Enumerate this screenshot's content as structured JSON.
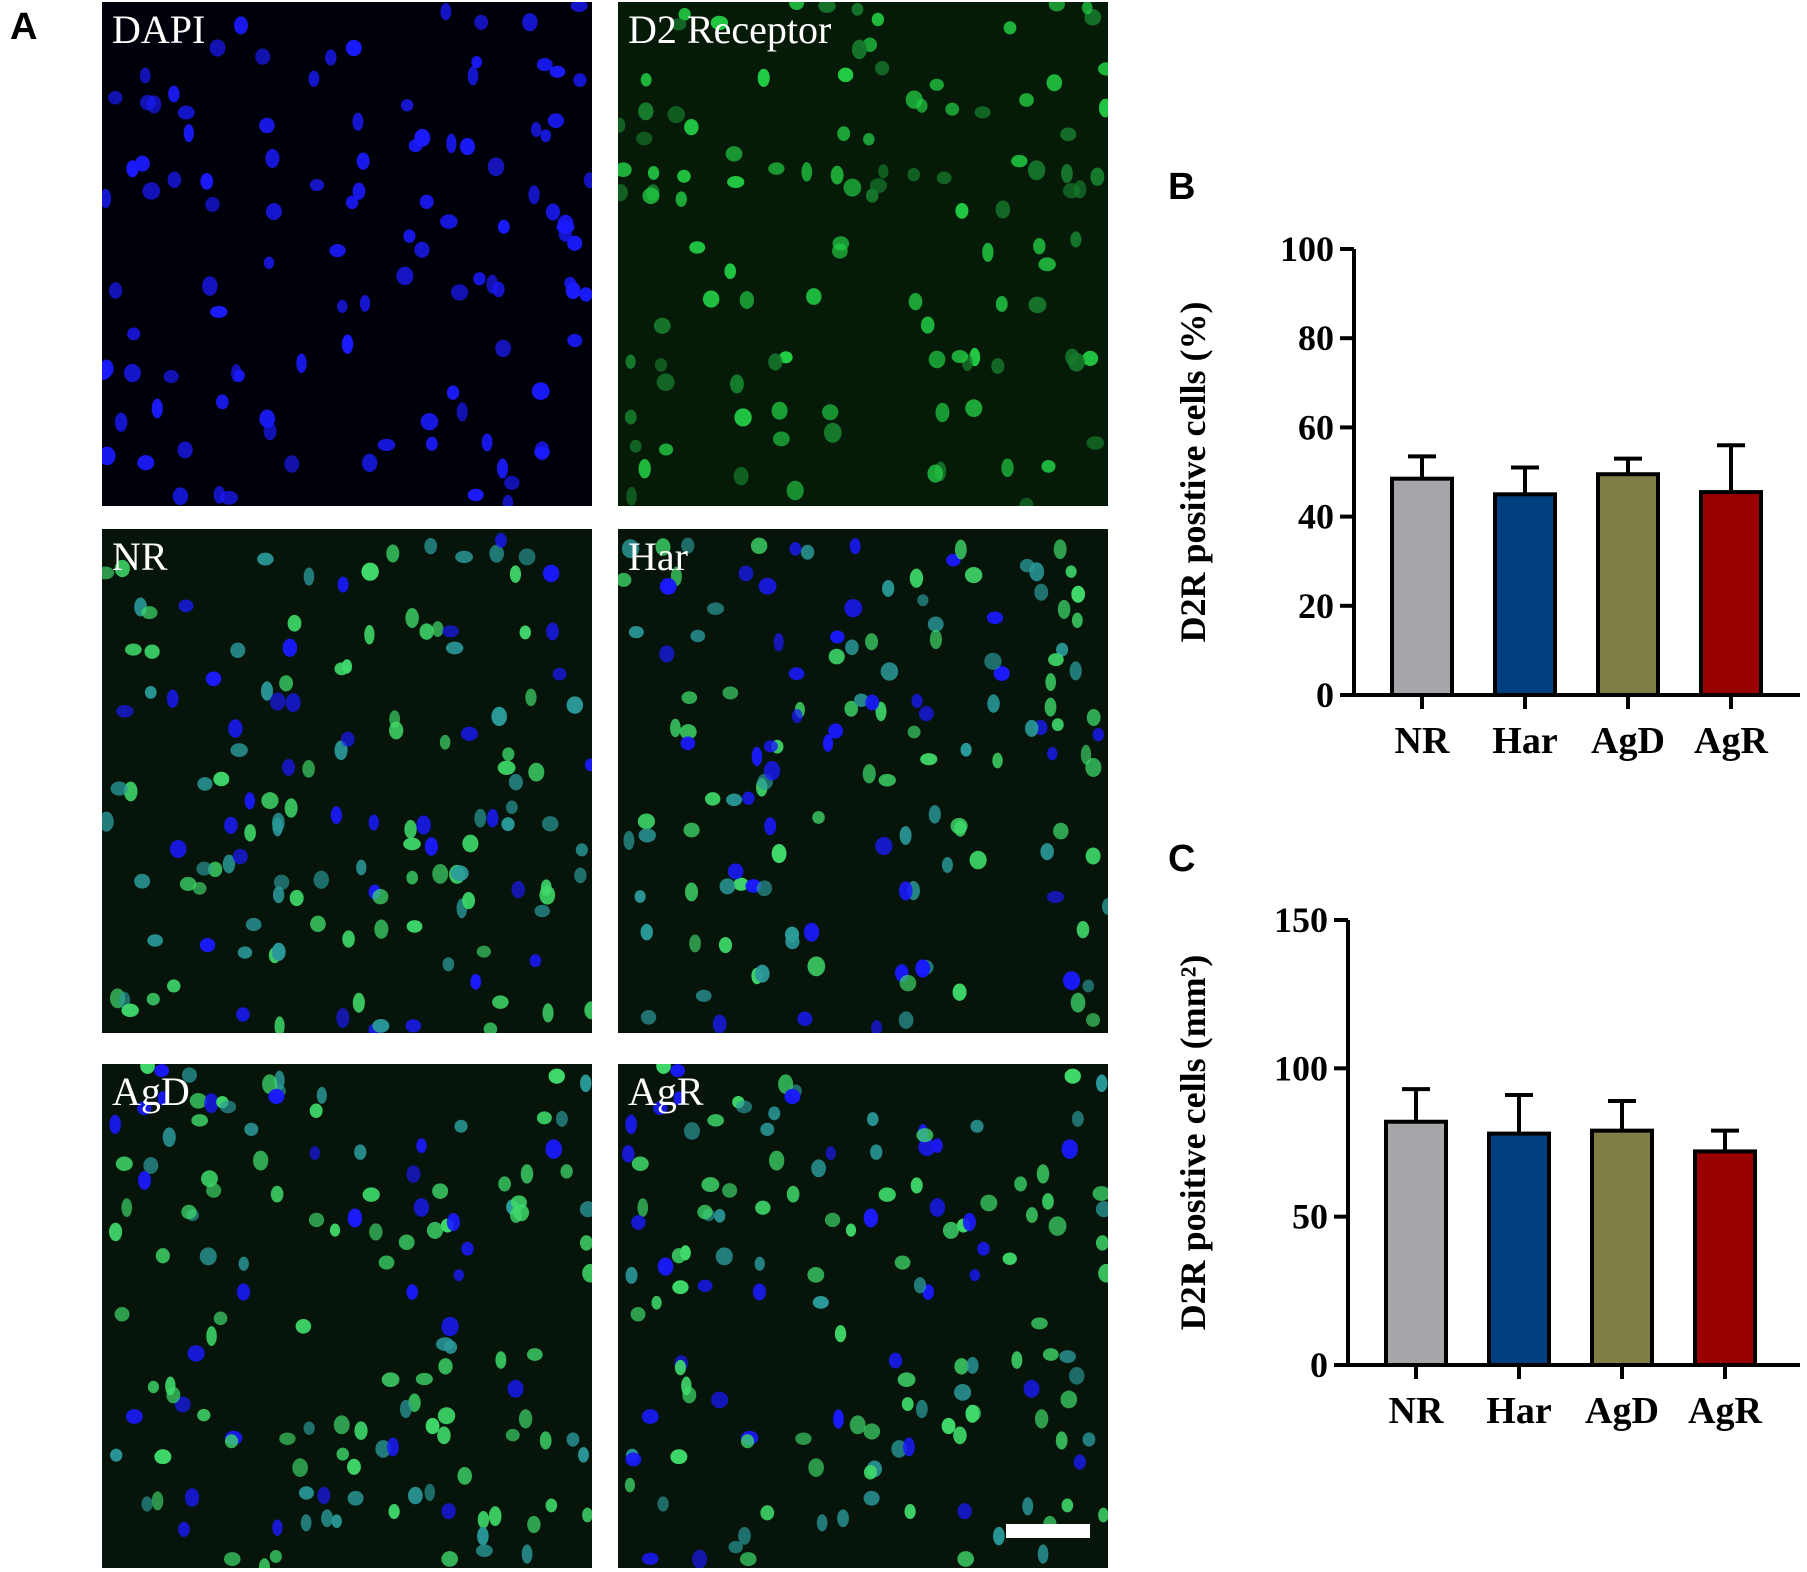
{
  "panels": {
    "a_letter": "A",
    "b_letter": "B",
    "c_letter": "C"
  },
  "micrographs": [
    {
      "label": "DAPI",
      "channels": "blue"
    },
    {
      "label": "D2 Receptor",
      "channels": "green"
    },
    {
      "label": "NR",
      "channels": "merge"
    },
    {
      "label": "Har",
      "channels": "merge"
    },
    {
      "label": "AgD",
      "channels": "merge"
    },
    {
      "label": "AgR",
      "channels": "merge"
    }
  ],
  "colors": {
    "dapi": "#1a1aff",
    "d2r": "#22cc44",
    "NR": "#a6a6aa",
    "Har": "#003f7f",
    "AgD": "#7f7f45",
    "AgR": "#990000"
  },
  "chart_data": [
    {
      "type": "bar",
      "panel": "B",
      "categories": [
        "NR",
        "Har",
        "AgD",
        "AgR"
      ],
      "values": [
        48.5,
        45,
        49.5,
        45.5
      ],
      "errors": [
        5,
        6,
        3.5,
        10.5
      ],
      "ylabel": "D2R positive cells (%)",
      "ylim": [
        0,
        100
      ],
      "yticks": [
        0,
        20,
        40,
        60,
        80,
        100
      ]
    },
    {
      "type": "bar",
      "panel": "C",
      "categories": [
        "NR",
        "Har",
        "AgD",
        "AgR"
      ],
      "values": [
        82,
        78,
        79,
        72
      ],
      "errors": [
        11,
        13,
        10,
        7
      ],
      "ylabel": "D2R positive cells (mm²)",
      "ylim": [
        0,
        150
      ],
      "yticks": [
        0,
        50,
        100,
        150
      ]
    }
  ]
}
